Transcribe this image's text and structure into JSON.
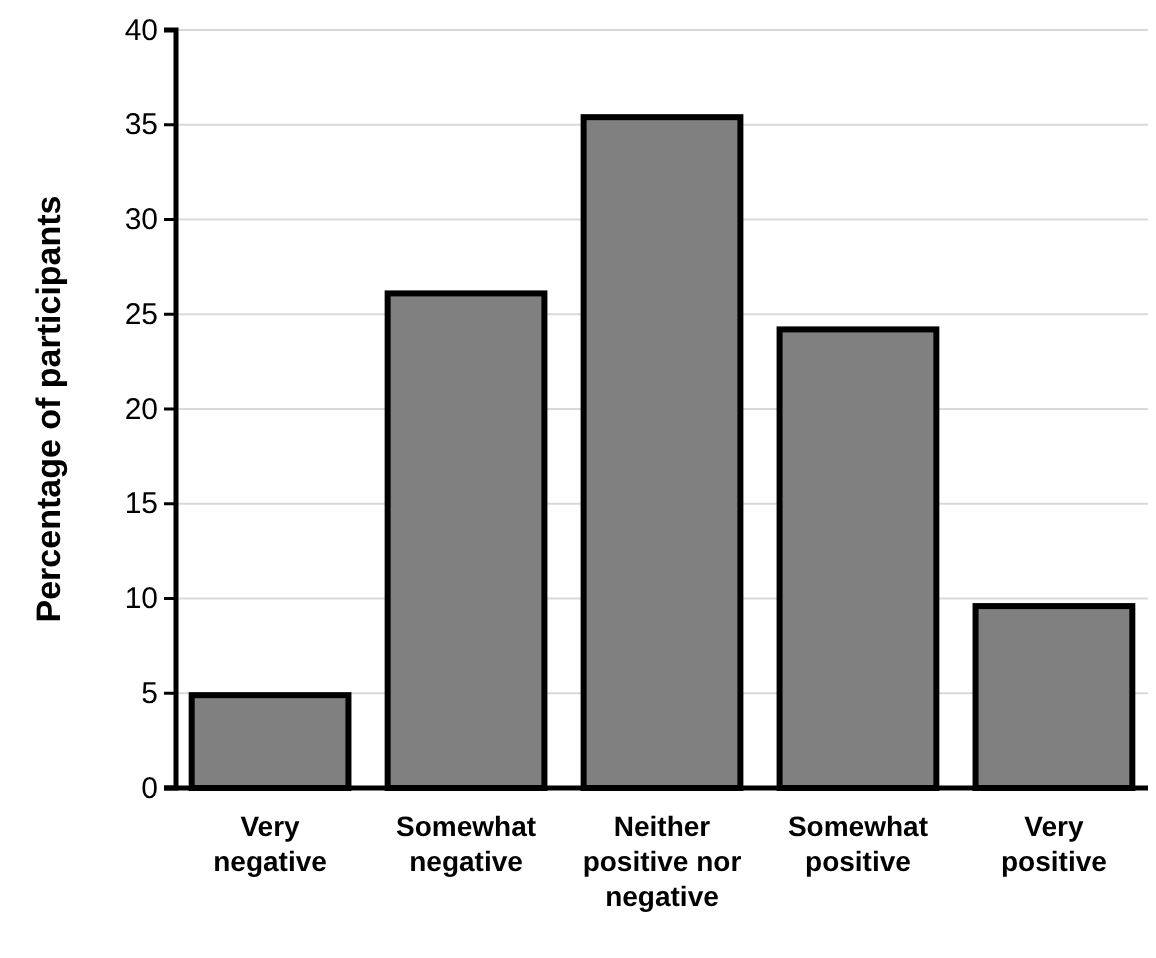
{
  "chart_data": {
    "type": "bar",
    "ylabel": "Percentage of participants",
    "categories": [
      "Very negative",
      "Somewhat negative",
      "Neither positive nor negative",
      "Somewhat positive",
      "Very positive"
    ],
    "values": [
      4.9,
      26.1,
      35.4,
      24.2,
      9.6
    ],
    "color": "#808080",
    "ylim": [
      0,
      40
    ],
    "yticks": [
      0,
      5,
      10,
      15,
      20,
      25,
      30,
      35,
      40
    ],
    "grid": "y"
  }
}
